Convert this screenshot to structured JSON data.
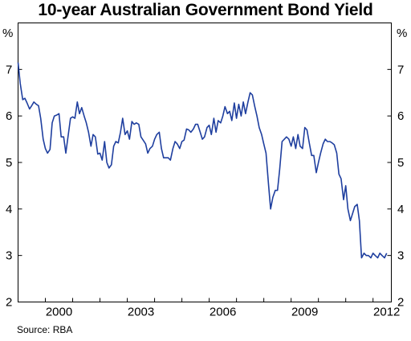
{
  "chart_data": {
    "type": "line",
    "title": "10-year Australian Government Bond Yield",
    "ylabel_left": "%",
    "ylabel_right": "%",
    "ylim": [
      2,
      8
    ],
    "y_ticks": [
      2,
      3,
      4,
      5,
      6,
      7
    ],
    "x_tick_labels": [
      "2000",
      "2003",
      "2006",
      "2009",
      "2012"
    ],
    "x_tick_years": [
      2000,
      2003,
      2006,
      2009,
      2012
    ],
    "xlim": [
      1999.0,
      2012.67
    ],
    "grid": false,
    "source": "Source: RBA",
    "line_color": "#1f3f9f",
    "series": [
      {
        "x": [
          1999.0,
          1999.08,
          1999.17,
          1999.25,
          1999.33,
          1999.42,
          1999.5,
          1999.58,
          1999.67,
          1999.75,
          1999.83,
          1999.92,
          2000.0,
          2000.08,
          2000.17,
          2000.25,
          2000.33,
          2000.42,
          2000.5,
          2000.58,
          2000.67,
          2000.75,
          2000.83,
          2000.92,
          2001.0,
          2001.08,
          2001.17,
          2001.25,
          2001.33,
          2001.42,
          2001.5,
          2001.58,
          2001.67,
          2001.75,
          2001.83,
          2001.92,
          2002.0,
          2002.08,
          2002.17,
          2002.25,
          2002.33,
          2002.42,
          2002.5,
          2002.58,
          2002.67,
          2002.75,
          2002.83,
          2002.92,
          2003.0,
          2003.08,
          2003.17,
          2003.25,
          2003.33,
          2003.42,
          2003.5,
          2003.58,
          2003.67,
          2003.75,
          2003.83,
          2003.92,
          2004.0,
          2004.08,
          2004.17,
          2004.25,
          2004.33,
          2004.42,
          2004.5,
          2004.58,
          2004.67,
          2004.75,
          2004.83,
          2004.92,
          2005.0,
          2005.08,
          2005.17,
          2005.25,
          2005.33,
          2005.42,
          2005.5,
          2005.58,
          2005.67,
          2005.75,
          2005.83,
          2005.92,
          2006.0,
          2006.08,
          2006.17,
          2006.25,
          2006.33,
          2006.42,
          2006.5,
          2006.58,
          2006.67,
          2006.75,
          2006.83,
          2006.92,
          2007.0,
          2007.08,
          2007.17,
          2007.25,
          2007.33,
          2007.42,
          2007.5,
          2007.58,
          2007.67,
          2007.75,
          2007.83,
          2007.92,
          2008.0,
          2008.08,
          2008.17,
          2008.25,
          2008.33,
          2008.42,
          2008.5,
          2008.58,
          2008.67,
          2008.75,
          2008.83,
          2008.92,
          2009.0,
          2009.08,
          2009.17,
          2009.25,
          2009.33,
          2009.42,
          2009.5,
          2009.58,
          2009.67,
          2009.75,
          2009.83,
          2009.92,
          2010.0,
          2010.08,
          2010.17,
          2010.25,
          2010.33,
          2010.42,
          2010.5,
          2010.58,
          2010.67,
          2010.75,
          2010.83,
          2010.92,
          2011.0,
          2011.08,
          2011.17,
          2011.25,
          2011.33,
          2011.42,
          2011.5,
          2011.58,
          2011.67,
          2011.75,
          2011.83,
          2011.92,
          2012.0,
          2012.08,
          2012.17,
          2012.25,
          2012.33,
          2012.42,
          2012.5
        ],
        "y": [
          7.15,
          6.7,
          6.35,
          6.38,
          6.28,
          6.15,
          6.22,
          6.3,
          6.25,
          6.22,
          5.95,
          5.5,
          5.3,
          5.2,
          5.28,
          5.85,
          6.0,
          6.02,
          6.05,
          5.55,
          5.55,
          5.2,
          5.55,
          5.95,
          5.98,
          5.95,
          6.3,
          6.05,
          6.18,
          6.0,
          5.85,
          5.65,
          5.35,
          5.6,
          5.55,
          5.18,
          5.2,
          5.05,
          5.45,
          5.0,
          4.88,
          4.95,
          5.35,
          5.45,
          5.42,
          5.65,
          5.95,
          5.6,
          5.68,
          5.5,
          5.88,
          5.82,
          5.85,
          5.82,
          5.55,
          5.48,
          5.4,
          5.2,
          5.3,
          5.35,
          5.5,
          5.6,
          5.65,
          5.3,
          5.1,
          5.1,
          5.1,
          5.05,
          5.3,
          5.45,
          5.4,
          5.3,
          5.45,
          5.48,
          5.72,
          5.7,
          5.65,
          5.72,
          5.82,
          5.82,
          5.65,
          5.5,
          5.55,
          5.75,
          5.8,
          5.6,
          5.95,
          5.65,
          5.9,
          5.85,
          6.0,
          6.2,
          6.05,
          6.1,
          5.9,
          6.28,
          5.95,
          6.25,
          6.0,
          6.3,
          6.05,
          6.3,
          6.5,
          6.45,
          6.2,
          6.0,
          5.75,
          5.6,
          5.4,
          5.2,
          4.55,
          4.0,
          4.25,
          4.4,
          4.4,
          4.85,
          5.45,
          5.5,
          5.55,
          5.5,
          5.35,
          5.55,
          5.3,
          5.6,
          5.35,
          5.3,
          5.75,
          5.7,
          5.4,
          5.15,
          5.15,
          4.78,
          5.0,
          5.2,
          5.4,
          5.5,
          5.45,
          5.45,
          5.42,
          5.38,
          5.2,
          4.75,
          4.65,
          4.2,
          4.5,
          4.0,
          3.75,
          3.9,
          4.05,
          4.1,
          3.75,
          2.95,
          3.05,
          3.0,
          3.0,
          2.95,
          3.05,
          3.0,
          2.95,
          3.05,
          3.0,
          2.95,
          3.05
        ]
      }
    ]
  }
}
